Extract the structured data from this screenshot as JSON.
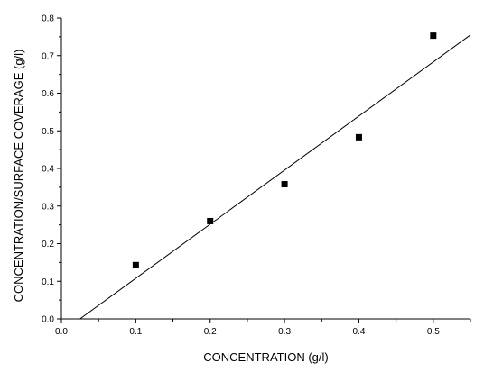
{
  "chart_data": {
    "type": "scatter",
    "title": "",
    "xlabel": "CONCENTRATION (g/l)",
    "ylabel": "CONCENTRATION/SURFACE COVERAGE (g/l)",
    "xlim": [
      0.0,
      0.55
    ],
    "ylim": [
      0.0,
      0.8
    ],
    "xticks": [
      "0.0",
      "0.1",
      "0.2",
      "0.3",
      "0.4",
      "0.5"
    ],
    "yticks": [
      "0.0",
      "0.1",
      "0.2",
      "0.3",
      "0.4",
      "0.5",
      "0.6",
      "0.7",
      "0.8"
    ],
    "grid": false,
    "legend": "none",
    "series": [
      {
        "type": "scatter",
        "x": [
          0.1,
          0.2,
          0.3,
          0.4,
          0.5
        ],
        "y": [
          0.143,
          0.26,
          0.358,
          0.483,
          0.753
        ],
        "marker": "square",
        "color": "#000000"
      }
    ],
    "fit_line": {
      "type": "line",
      "x": [
        0.025,
        0.55
      ],
      "y": [
        0.0,
        0.755
      ],
      "color": "#000000"
    }
  }
}
